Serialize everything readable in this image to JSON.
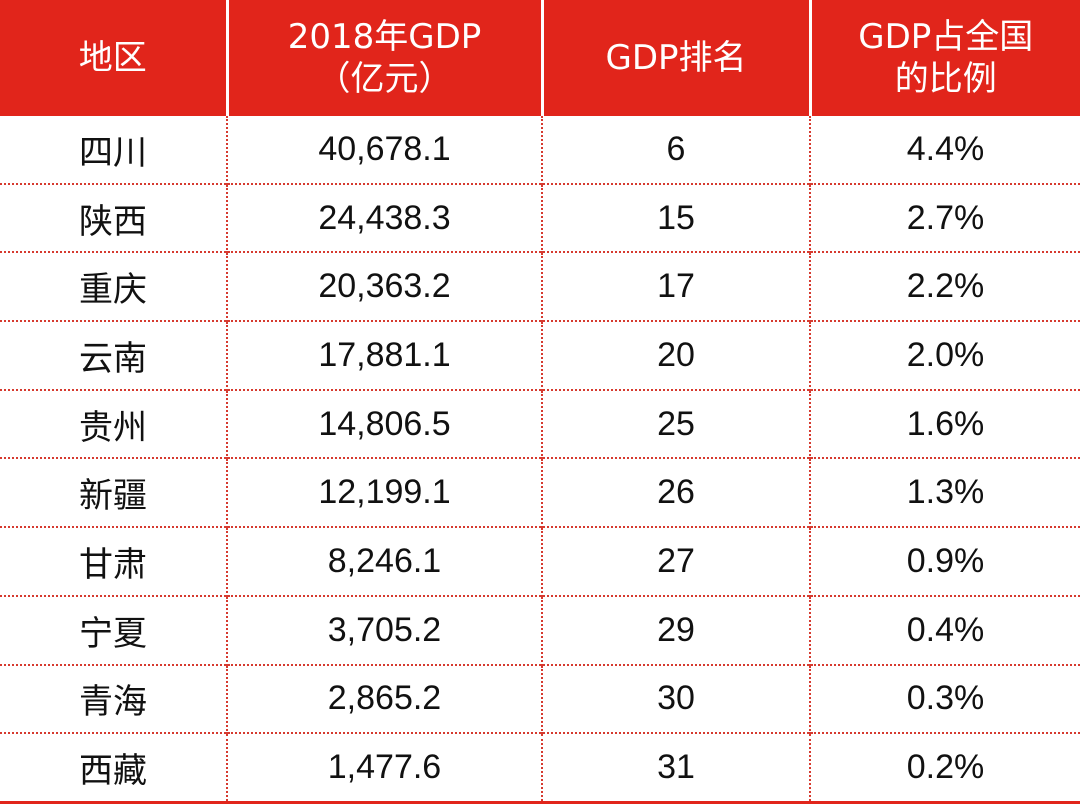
{
  "table": {
    "headers": [
      {
        "lines": [
          "地区"
        ]
      },
      {
        "lines": [
          "2018年GDP",
          "（亿元）"
        ]
      },
      {
        "lines": [
          "GDP排名"
        ]
      },
      {
        "lines": [
          "GDP占全国",
          "的比例"
        ]
      }
    ],
    "rows": [
      {
        "region": "四川",
        "gdp": "40,678.1",
        "rank": "6",
        "share": "4.4%"
      },
      {
        "region": "陕西",
        "gdp": "24,438.3",
        "rank": "15",
        "share": "2.7%"
      },
      {
        "region": "重庆",
        "gdp": "20,363.2",
        "rank": "17",
        "share": "2.2%"
      },
      {
        "region": "云南",
        "gdp": "17,881.1",
        "rank": "20",
        "share": "2.0%"
      },
      {
        "region": "贵州",
        "gdp": "14,806.5",
        "rank": "25",
        "share": "1.6%"
      },
      {
        "region": "新疆",
        "gdp": "12,199.1",
        "rank": "26",
        "share": "1.3%"
      },
      {
        "region": "甘肃",
        "gdp": "8,246.1",
        "rank": "27",
        "share": "0.9%"
      },
      {
        "region": "宁夏",
        "gdp": "3,705.2",
        "rank": "29",
        "share": "0.4%"
      },
      {
        "region": "青海",
        "gdp": "2,865.2",
        "rank": "30",
        "share": "0.3%"
      },
      {
        "region": "西藏",
        "gdp": "1,477.6",
        "rank": "31",
        "share": "0.2%"
      }
    ]
  },
  "colors": {
    "header_background": "#e1251b",
    "header_text": "#ffffff",
    "row_divider": "#d63a2f"
  }
}
